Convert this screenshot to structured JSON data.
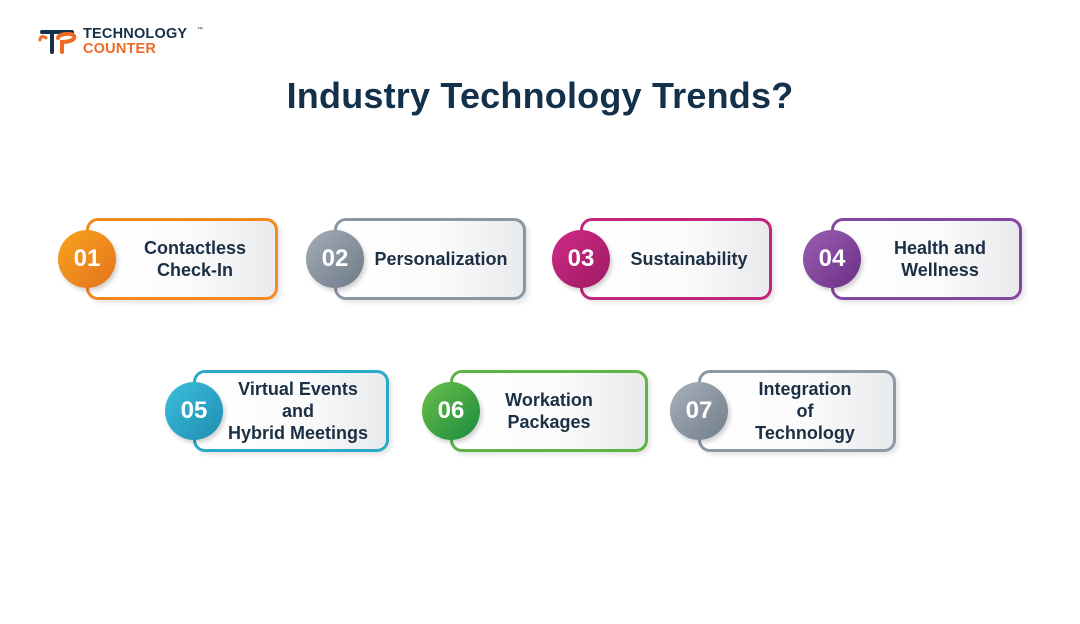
{
  "logo": {
    "line1": "TECHNOLOGY",
    "line2": "COUNTER",
    "tm": "™"
  },
  "title": "Industry Technology Trends?",
  "trends": [
    {
      "num": "01",
      "label": "Contactless\nCheck-In",
      "color_from": "#f7a41d",
      "color_to": "#e5731d",
      "border": "#f28a1f"
    },
    {
      "num": "02",
      "label": "Personalization",
      "color_from": "#a4aeb8",
      "color_to": "#6e7a88",
      "border": "#8b96a3"
    },
    {
      "num": "03",
      "label": "Sustainability",
      "color_from": "#d12a87",
      "color_to": "#9c1a62",
      "border": "#c2267c"
    },
    {
      "num": "04",
      "label": "Health and\nWellness",
      "color_from": "#9b5fb3",
      "color_to": "#6a2f85",
      "border": "#84479f"
    },
    {
      "num": "05",
      "label": "Virtual Events\nand\nHybrid Meetings",
      "color_from": "#3cbfdc",
      "color_to": "#1f8db0",
      "border": "#2aa9c9"
    },
    {
      "num": "06",
      "label": "Workation\nPackages",
      "color_from": "#6cc04a",
      "color_to": "#178a3d",
      "border": "#5fb447"
    },
    {
      "num": "07",
      "label": "Integration\nof\nTechnology",
      "color_from": "#a7b1bb",
      "color_to": "#717d8a",
      "border": "#8d98a4"
    }
  ]
}
